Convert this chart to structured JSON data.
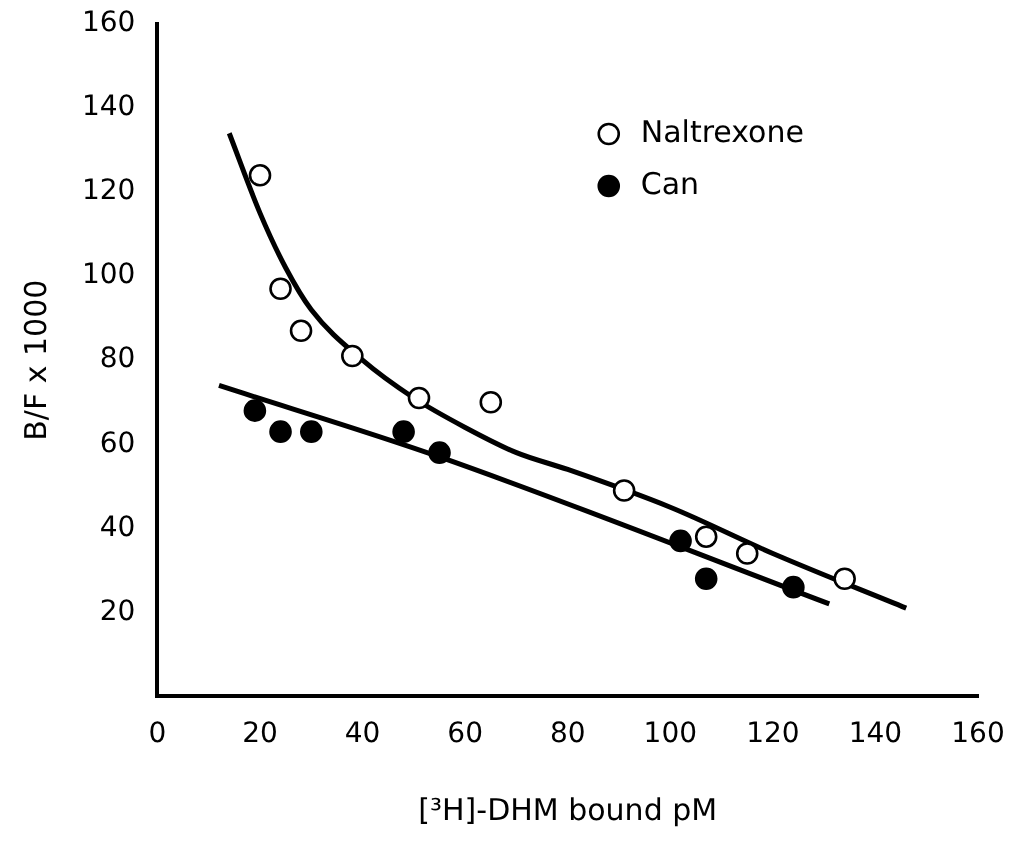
{
  "chart_data": {
    "type": "scatter",
    "xlabel": "[³H]-DHM bound pM",
    "ylabel": "B/F x 1000",
    "xlim": [
      0,
      160
    ],
    "xticks": [
      0,
      20,
      40,
      60,
      80,
      100,
      120,
      140,
      160
    ],
    "ylim": [
      0,
      160
    ],
    "yticks": [
      20,
      40,
      60,
      80,
      100,
      120,
      140,
      160
    ],
    "grid": false,
    "legend": "top right",
    "marker": "circle",
    "series": [
      {
        "name": "Naltrexone",
        "color": "#ffffff",
        "x": [
          20,
          24,
          28,
          38,
          51,
          65,
          91,
          107,
          115,
          134
        ],
        "values": [
          124,
          97,
          87,
          81,
          71,
          70,
          49,
          38,
          34,
          28
        ]
      },
      {
        "name": "Can",
        "color": "#000000",
        "x": [
          19,
          24,
          30,
          48,
          55,
          102,
          107,
          124
        ],
        "values": [
          68,
          63,
          63,
          63,
          58,
          37,
          28,
          26
        ]
      },
      {
        "type": "line",
        "marker": "none",
        "color": "#000000",
        "x": [
          14,
          20,
          25,
          30,
          40,
          50,
          60,
          70,
          80,
          100,
          120,
          146
        ],
        "values": [
          134,
          115,
          102,
          92,
          80,
          71,
          64,
          58,
          54,
          45,
          34,
          21
        ]
      },
      {
        "type": "line",
        "marker": "none",
        "color": "#000000",
        "x": [
          12,
          55,
          131
        ],
        "values": [
          74,
          57,
          22
        ]
      }
    ]
  }
}
